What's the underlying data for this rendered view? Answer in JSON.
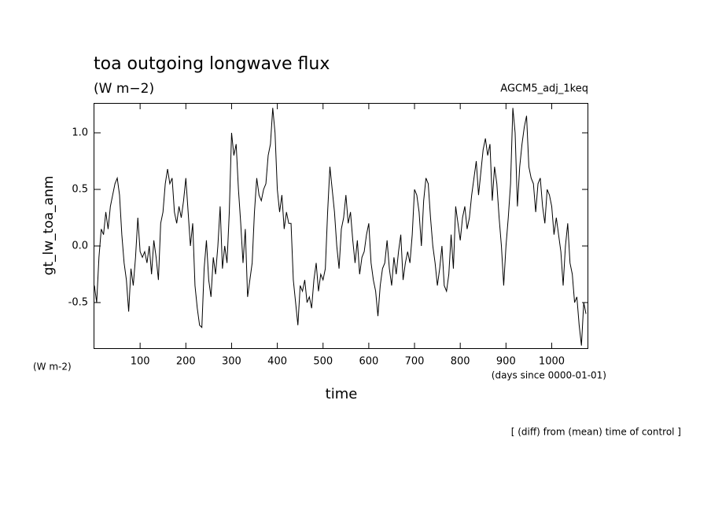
{
  "chart_data": {
    "type": "line",
    "title": "toa outgoing longwave flux",
    "subtitle": "(W m−2)",
    "annotation": "AGCM5_adj_1keq",
    "y_label": "gt_lw_toa_anm",
    "y_unit": "(W m-2)",
    "x_unit": "(days since 0000-01-01)",
    "x_label": "time",
    "footnote": "[ (diff) from (mean) time of control ]",
    "color": "#000000",
    "xlim": [
      0,
      1080
    ],
    "ylim": [
      -0.91,
      1.264
    ],
    "xticks": [
      100,
      200,
      300,
      400,
      500,
      600,
      700,
      800,
      900,
      1000
    ],
    "yticks": [
      {
        "value": -0.5,
        "label": "-0.5"
      },
      {
        "value": 0,
        "label": "0.0"
      },
      {
        "value": 0.5,
        "label": "0.5"
      },
      {
        "value": 1,
        "label": "1.0"
      }
    ],
    "x": [
      0,
      5,
      10,
      15,
      20,
      25,
      30,
      35,
      40,
      45,
      50,
      55,
      60,
      65,
      70,
      75,
      80,
      85,
      90,
      95,
      100,
      105,
      110,
      115,
      120,
      125,
      130,
      135,
      140,
      145,
      150,
      155,
      160,
      165,
      170,
      175,
      180,
      185,
      190,
      195,
      200,
      205,
      210,
      215,
      220,
      225,
      230,
      235,
      240,
      245,
      250,
      255,
      260,
      265,
      270,
      275,
      280,
      285,
      290,
      295,
      300,
      305,
      310,
      315,
      320,
      325,
      330,
      335,
      340,
      345,
      350,
      355,
      360,
      365,
      370,
      375,
      380,
      385,
      390,
      395,
      400,
      405,
      410,
      415,
      420,
      425,
      430,
      435,
      440,
      445,
      450,
      455,
      460,
      465,
      470,
      475,
      480,
      485,
      490,
      495,
      500,
      505,
      510,
      515,
      520,
      525,
      530,
      535,
      540,
      545,
      550,
      555,
      560,
      565,
      570,
      575,
      580,
      585,
      590,
      595,
      600,
      605,
      610,
      615,
      620,
      625,
      630,
      635,
      640,
      645,
      650,
      655,
      660,
      665,
      670,
      675,
      680,
      685,
      690,
      695,
      700,
      705,
      710,
      715,
      720,
      725,
      730,
      735,
      740,
      745,
      750,
      755,
      760,
      765,
      770,
      775,
      780,
      785,
      790,
      795,
      800,
      805,
      810,
      815,
      820,
      825,
      830,
      835,
      840,
      845,
      850,
      855,
      860,
      865,
      870,
      875,
      880,
      885,
      890,
      895,
      900,
      905,
      910,
      915,
      920,
      925,
      930,
      935,
      940,
      945,
      950,
      955,
      960,
      965,
      970,
      975,
      980,
      985,
      990,
      995,
      1000,
      1005,
      1010,
      1015,
      1020,
      1025,
      1030,
      1035,
      1040,
      1045,
      1050,
      1055,
      1060,
      1065,
      1070,
      1075
    ],
    "values": [
      -0.35,
      -0.5,
      -0.1,
      0.15,
      0.1,
      0.3,
      0.15,
      0.35,
      0.45,
      0.55,
      0.6,
      0.45,
      0.1,
      -0.15,
      -0.3,
      -0.58,
      -0.2,
      -0.35,
      -0.1,
      0.25,
      -0.05,
      -0.1,
      -0.05,
      -0.15,
      0.0,
      -0.25,
      0.05,
      -0.1,
      -0.3,
      0.2,
      0.3,
      0.55,
      0.68,
      0.55,
      0.6,
      0.3,
      0.2,
      0.35,
      0.25,
      0.4,
      0.6,
      0.3,
      0.0,
      0.2,
      -0.35,
      -0.55,
      -0.7,
      -0.72,
      -0.2,
      0.05,
      -0.3,
      -0.45,
      -0.1,
      -0.25,
      0.0,
      0.35,
      -0.2,
      0.0,
      -0.15,
      0.3,
      1.0,
      0.8,
      0.9,
      0.5,
      0.2,
      -0.15,
      0.15,
      -0.45,
      -0.3,
      -0.15,
      0.3,
      0.6,
      0.45,
      0.4,
      0.5,
      0.55,
      0.8,
      0.9,
      1.22,
      1.0,
      0.5,
      0.3,
      0.45,
      0.15,
      0.3,
      0.2,
      0.2,
      -0.3,
      -0.5,
      -0.7,
      -0.35,
      -0.4,
      -0.3,
      -0.5,
      -0.45,
      -0.55,
      -0.3,
      -0.15,
      -0.4,
      -0.25,
      -0.3,
      -0.2,
      0.3,
      0.7,
      0.5,
      0.3,
      0.0,
      -0.2,
      0.15,
      0.25,
      0.45,
      0.2,
      0.3,
      0.05,
      -0.15,
      0.05,
      -0.25,
      -0.1,
      -0.05,
      0.1,
      0.2,
      -0.15,
      -0.3,
      -0.4,
      -0.62,
      -0.35,
      -0.2,
      -0.15,
      0.05,
      -0.2,
      -0.35,
      -0.1,
      -0.25,
      -0.05,
      0.1,
      -0.3,
      -0.15,
      -0.05,
      -0.15,
      0.1,
      0.5,
      0.45,
      0.3,
      0.0,
      0.4,
      0.6,
      0.55,
      0.25,
      0.0,
      -0.15,
      -0.35,
      -0.2,
      0.0,
      -0.35,
      -0.4,
      -0.25,
      0.1,
      -0.2,
      0.35,
      0.2,
      0.05,
      0.25,
      0.35,
      0.15,
      0.25,
      0.45,
      0.6,
      0.75,
      0.45,
      0.65,
      0.85,
      0.95,
      0.8,
      0.9,
      0.4,
      0.7,
      0.55,
      0.25,
      0.0,
      -0.35,
      0.0,
      0.25,
      0.55,
      1.22,
      1.0,
      0.35,
      0.7,
      0.9,
      1.05,
      1.15,
      0.7,
      0.6,
      0.55,
      0.3,
      0.55,
      0.6,
      0.35,
      0.2,
      0.5,
      0.45,
      0.35,
      0.1,
      0.25,
      0.1,
      -0.05,
      -0.35,
      0.0,
      0.2,
      -0.15,
      -0.25,
      -0.5,
      -0.45,
      -0.7,
      -0.88,
      -0.5,
      -0.6
    ]
  }
}
